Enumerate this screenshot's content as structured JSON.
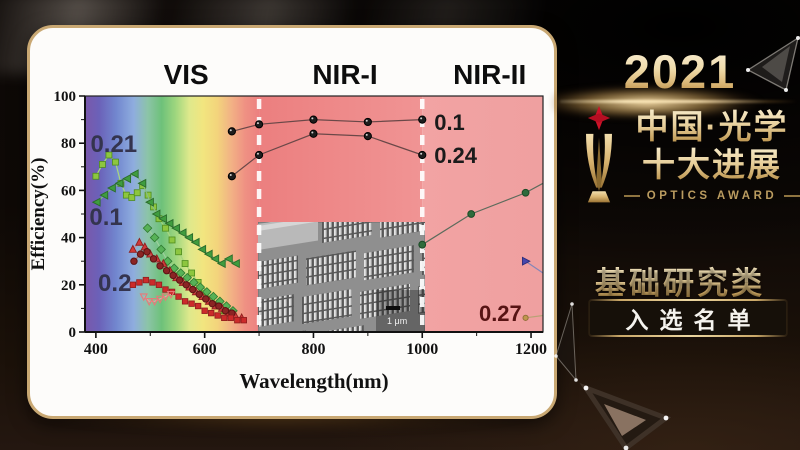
{
  "award_panel": {
    "year": "2021",
    "title_line1": "中国·光学",
    "title_line2": "十大进展",
    "subtitle": "OPTICS AWARD",
    "category": "基础研究类",
    "list_label": "入选名单",
    "colors": {
      "gold": "#d8b97a",
      "star_red": "#cc1228",
      "panel_bg": "#0c0806"
    }
  },
  "chart_data": {
    "type": "scatter",
    "title": "",
    "xlabel": "Wavelength(nm)",
    "ylabel": "Efficiency(%)",
    "xlim": [
      380,
      1222
    ],
    "ylim": [
      0,
      100
    ],
    "x_ticks": [
      400,
      600,
      800,
      1000,
      1200
    ],
    "x_minor_ticks": [
      500,
      700,
      900,
      1100
    ],
    "y_ticks": [
      0,
      20,
      40,
      60,
      80,
      100
    ],
    "y_minor_ticks": [
      10,
      30,
      50,
      70,
      90
    ],
    "grid": false,
    "dashed_lines_nm": [
      700,
      1000
    ],
    "regions": [
      {
        "label": "VIS",
        "range": [
          380,
          700
        ],
        "label_nm": 566
      },
      {
        "label": "NIR-I",
        "range": [
          700,
          1000
        ],
        "label_nm": 858
      },
      {
        "label": "NIR-II",
        "range": [
          1000,
          1222
        ],
        "label_nm": 1124
      }
    ],
    "colors": {
      "vis_stops": [
        [
          0,
          "#7a58ab"
        ],
        [
          0.08,
          "#6b61b8"
        ],
        [
          0.18,
          "#7287cf"
        ],
        [
          0.28,
          "#8fadde"
        ],
        [
          0.36,
          "#8cc4a8"
        ],
        [
          0.44,
          "#6ec17a"
        ],
        [
          0.52,
          "#9ed67e"
        ],
        [
          0.6,
          "#dfe98c"
        ],
        [
          0.68,
          "#f2e57f"
        ],
        [
          0.76,
          "#f3d47c"
        ],
        [
          0.84,
          "#f2b285"
        ],
        [
          0.92,
          "#ef9183"
        ],
        [
          1,
          "#ec8080"
        ]
      ],
      "nir1": [
        "#ec7f7f",
        "#f09494"
      ],
      "nir2": [
        "#f2a3a3",
        "#efa0a0"
      ],
      "dashed_line": "#ffffff",
      "axis": "#111111"
    },
    "annotations": [
      {
        "text": "0.21",
        "nm": 390,
        "pct": 80,
        "color": "#34344e",
        "size": 24,
        "anchor": "start"
      },
      {
        "text": "0.1",
        "nm": 388,
        "pct": 49,
        "color": "#34344e",
        "size": 24,
        "anchor": "start"
      },
      {
        "text": "0.2",
        "nm": 404,
        "pct": 21,
        "color": "#34344e",
        "size": 24,
        "anchor": "start"
      },
      {
        "text": "0.1",
        "nm": 1022,
        "pct": 89,
        "color": "#1b1b1b",
        "size": 22,
        "anchor": "start"
      },
      {
        "text": "0.24",
        "nm": 1022,
        "pct": 75,
        "color": "#1b1b1b",
        "size": 22,
        "anchor": "start"
      },
      {
        "text": "0.27",
        "nm": 1183,
        "pct": 8,
        "color": "#571414",
        "size": 22,
        "anchor": "end"
      }
    ],
    "series": [
      {
        "name": "green-squares-0.21",
        "marker": "square",
        "size": 6,
        "color": "#8dc63f",
        "edge": "#4e8c1e",
        "line": "#a9d57f",
        "points": [
          [
            400,
            66
          ],
          [
            412,
            71
          ],
          [
            424,
            75
          ],
          [
            436,
            72
          ],
          [
            446,
            63
          ],
          [
            456,
            58
          ],
          [
            466,
            57
          ],
          [
            476,
            59
          ],
          [
            486,
            62
          ],
          [
            496,
            58
          ],
          [
            506,
            53
          ],
          [
            516,
            48
          ],
          [
            528,
            44
          ],
          [
            540,
            39
          ],
          [
            552,
            34
          ],
          [
            564,
            29
          ],
          [
            576,
            25
          ],
          [
            588,
            21
          ],
          [
            600,
            17
          ],
          [
            612,
            14
          ],
          [
            624,
            11
          ],
          [
            636,
            9
          ],
          [
            648,
            7
          ]
        ]
      },
      {
        "name": "green-triangles-0.1",
        "marker": "triangle-left",
        "size": 7,
        "color": "#3f9c3f",
        "edge": "#2a6b2a",
        "line": "#86bb86",
        "points": [
          [
            402,
            55
          ],
          [
            416,
            58
          ],
          [
            430,
            61
          ],
          [
            444,
            63
          ],
          [
            458,
            65
          ],
          [
            472,
            67
          ],
          [
            486,
            63
          ],
          [
            500,
            55
          ],
          [
            512,
            50
          ],
          [
            524,
            48
          ],
          [
            536,
            46
          ],
          [
            548,
            44
          ],
          [
            560,
            42
          ],
          [
            572,
            40
          ],
          [
            584,
            38
          ],
          [
            596,
            35
          ],
          [
            608,
            33
          ],
          [
            620,
            31
          ],
          [
            632,
            29
          ],
          [
            645,
            31
          ],
          [
            658,
            29
          ]
        ]
      },
      {
        "name": "green-diamonds",
        "marker": "diamond",
        "size": 6,
        "color": "#57b257",
        "edge": "#2f7a2f",
        "line": "#9ccf9c",
        "points": [
          [
            495,
            44
          ],
          [
            508,
            40
          ],
          [
            520,
            35
          ],
          [
            532,
            30
          ],
          [
            544,
            27
          ],
          [
            556,
            25
          ],
          [
            568,
            23
          ],
          [
            580,
            21
          ],
          [
            592,
            19
          ],
          [
            604,
            17
          ],
          [
            616,
            15
          ],
          [
            628,
            13
          ],
          [
            640,
            11
          ],
          [
            652,
            9
          ]
        ]
      },
      {
        "name": "red-triangles-0.2",
        "marker": "triangle-up",
        "size": 6.5,
        "color": "#d03a3a",
        "edge": "#8f1f1f",
        "line": "#d98a8a",
        "points": [
          [
            468,
            35
          ],
          [
            480,
            38
          ],
          [
            490,
            36
          ],
          [
            500,
            33
          ],
          [
            512,
            31
          ],
          [
            524,
            29
          ],
          [
            536,
            26
          ],
          [
            548,
            23
          ],
          [
            560,
            21
          ],
          [
            572,
            19
          ],
          [
            584,
            17
          ],
          [
            596,
            15
          ],
          [
            608,
            13
          ],
          [
            620,
            11
          ],
          [
            632,
            10
          ],
          [
            644,
            8
          ],
          [
            656,
            7
          ],
          [
            668,
            6
          ]
        ]
      },
      {
        "name": "darkred-circles",
        "marker": "circle",
        "size": 3.2,
        "color": "#8b2424",
        "edge": "#5c1414",
        "line": "#a96a6a",
        "points": [
          [
            470,
            30
          ],
          [
            482,
            33
          ],
          [
            494,
            34
          ],
          [
            506,
            31
          ],
          [
            518,
            28
          ],
          [
            530,
            26
          ],
          [
            542,
            24
          ],
          [
            554,
            22
          ],
          [
            566,
            20
          ],
          [
            578,
            18
          ],
          [
            590,
            16
          ],
          [
            602,
            14
          ],
          [
            614,
            12
          ],
          [
            626,
            11
          ],
          [
            638,
            9
          ],
          [
            650,
            8
          ]
        ]
      },
      {
        "name": "red-squares",
        "marker": "square",
        "size": 5.5,
        "color": "#cc2b2b",
        "edge": "#8f1d1d",
        "line": "#dc9090",
        "points": [
          [
            468,
            20
          ],
          [
            480,
            21
          ],
          [
            492,
            22
          ],
          [
            504,
            21
          ],
          [
            516,
            20
          ],
          [
            528,
            18
          ],
          [
            540,
            17
          ],
          [
            552,
            15
          ],
          [
            564,
            13
          ],
          [
            576,
            12
          ],
          [
            588,
            11
          ],
          [
            600,
            9
          ],
          [
            612,
            8
          ],
          [
            624,
            7
          ],
          [
            636,
            6
          ],
          [
            648,
            6
          ],
          [
            660,
            5
          ],
          [
            672,
            5
          ]
        ]
      },
      {
        "name": "pink-open-triangles",
        "marker": "triangle-down",
        "size": 6,
        "color": "none",
        "edge": "#e87878",
        "line": "#eda0a0",
        "points": [
          [
            488,
            15
          ],
          [
            498,
            13
          ],
          [
            508,
            13
          ],
          [
            518,
            14
          ],
          [
            528,
            15
          ],
          [
            538,
            16
          ]
        ]
      },
      {
        "name": "black-circles-0.1",
        "marker": "circle",
        "size": 3.6,
        "color": "#1d1d1d",
        "edge": "#000000",
        "line": "#6a4848",
        "highlight": true,
        "points": [
          [
            650,
            85
          ],
          [
            700,
            88
          ],
          [
            800,
            90
          ],
          [
            900,
            89
          ],
          [
            1000,
            90
          ]
        ]
      },
      {
        "name": "black-circles-0.24",
        "marker": "circle",
        "size": 3.6,
        "color": "#1d1d1d",
        "edge": "#000000",
        "line": "#6a4848",
        "highlight": true,
        "points": [
          [
            650,
            66
          ],
          [
            700,
            75
          ],
          [
            800,
            84
          ],
          [
            900,
            83
          ],
          [
            1000,
            75
          ]
        ]
      },
      {
        "name": "green-circles-nir2",
        "marker": "circle",
        "size": 3.4,
        "color": "#2e6b3c",
        "edge": "#1c4a26",
        "line": "#5c6b5c",
        "points": [
          [
            1000,
            37
          ],
          [
            1090,
            50
          ],
          [
            1190,
            59
          ]
        ],
        "tail": [
          1222,
          63
        ]
      },
      {
        "name": "blue-triangle-right",
        "marker": "triangle-right",
        "size": 7,
        "color": "#4747ad",
        "edge": "#2e2e7a",
        "line": "#8585b8",
        "points": [
          [
            1190,
            30
          ]
        ],
        "tail": [
          1222,
          25
        ]
      },
      {
        "name": "gold-dot-0.27",
        "marker": "circle",
        "size": 2.6,
        "color": "#c0984e",
        "edge": "#95703a",
        "line": "#b9a275",
        "points": [
          [
            1190,
            6
          ]
        ],
        "tail": [
          1222,
          7
        ]
      }
    ],
    "inset": {
      "description": "SEM micrograph of metasurface nanopillar arrays",
      "scale_label": "1 μm"
    }
  }
}
